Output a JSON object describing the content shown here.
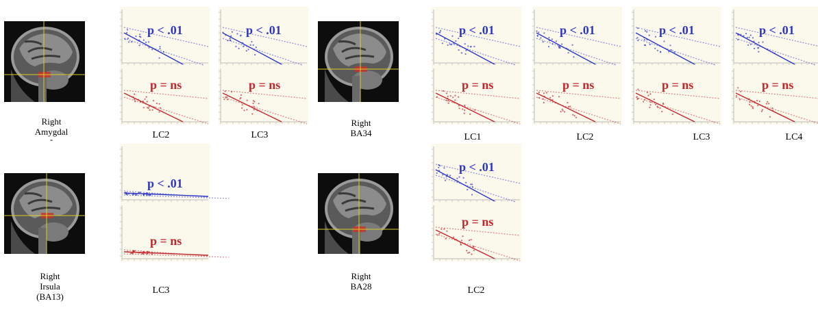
{
  "colors": {
    "blue": "#2e36c9",
    "red": "#c4262c",
    "panel_bg": "#fbf8ec",
    "crosshair": "#d8cf2a",
    "roi": "#c8352a"
  },
  "brain_slices": [
    {
      "id": "amygdala",
      "label_lines": [
        "Right",
        "Amygdal",
        "-"
      ]
    },
    {
      "id": "ba34",
      "label_lines": [
        "Right",
        "BA34"
      ]
    },
    {
      "id": "insula",
      "label_lines": [
        "Right",
        "Irsula",
        "(BA13)"
      ]
    },
    {
      "id": "ba28",
      "label_lines": [
        "Right",
        "BA28"
      ]
    }
  ],
  "chart_data": [
    {
      "type": "scatter",
      "region": "amygdala",
      "label": "LC2",
      "top": {
        "text": "p < .01",
        "trend": "negative"
      },
      "bottom": {
        "text": "p = ns",
        "trend": "negative"
      }
    },
    {
      "type": "scatter",
      "region": "amygdala",
      "label": "LC3",
      "top": {
        "text": "p < .01",
        "trend": "negative"
      },
      "bottom": {
        "text": "p = ns",
        "trend": "negative"
      }
    },
    {
      "type": "scatter",
      "region": "ba34",
      "label": "LC1",
      "top": {
        "text": "p < .01",
        "trend": "negative"
      },
      "bottom": {
        "text": "p = ns",
        "trend": "negative"
      }
    },
    {
      "type": "scatter",
      "region": "ba34",
      "label": "LC2",
      "top": {
        "text": "p < .01",
        "trend": "negative"
      },
      "bottom": {
        "text": "p = ns",
        "trend": "negative"
      }
    },
    {
      "type": "scatter",
      "region": "ba34",
      "label": "LC3",
      "top": {
        "text": "p < .01",
        "trend": "negative"
      },
      "bottom": {
        "text": "p = ns",
        "trend": "negative"
      }
    },
    {
      "type": "scatter",
      "region": "ba34",
      "label": "LC4",
      "top": {
        "text": "p < .01",
        "trend": "negative"
      },
      "bottom": {
        "text": "p = ns",
        "trend": "negative"
      }
    },
    {
      "type": "scatter",
      "region": "insula",
      "label": "LC3",
      "top": {
        "text": "p < .01",
        "trend": "flat"
      },
      "bottom": {
        "text": "p = ns",
        "trend": "flat"
      }
    },
    {
      "type": "scatter",
      "region": "ba28",
      "label": "LC2",
      "top": {
        "text": "p < .01",
        "trend": "negative"
      },
      "bottom": {
        "text": "p = ns",
        "trend": "negative"
      }
    }
  ]
}
